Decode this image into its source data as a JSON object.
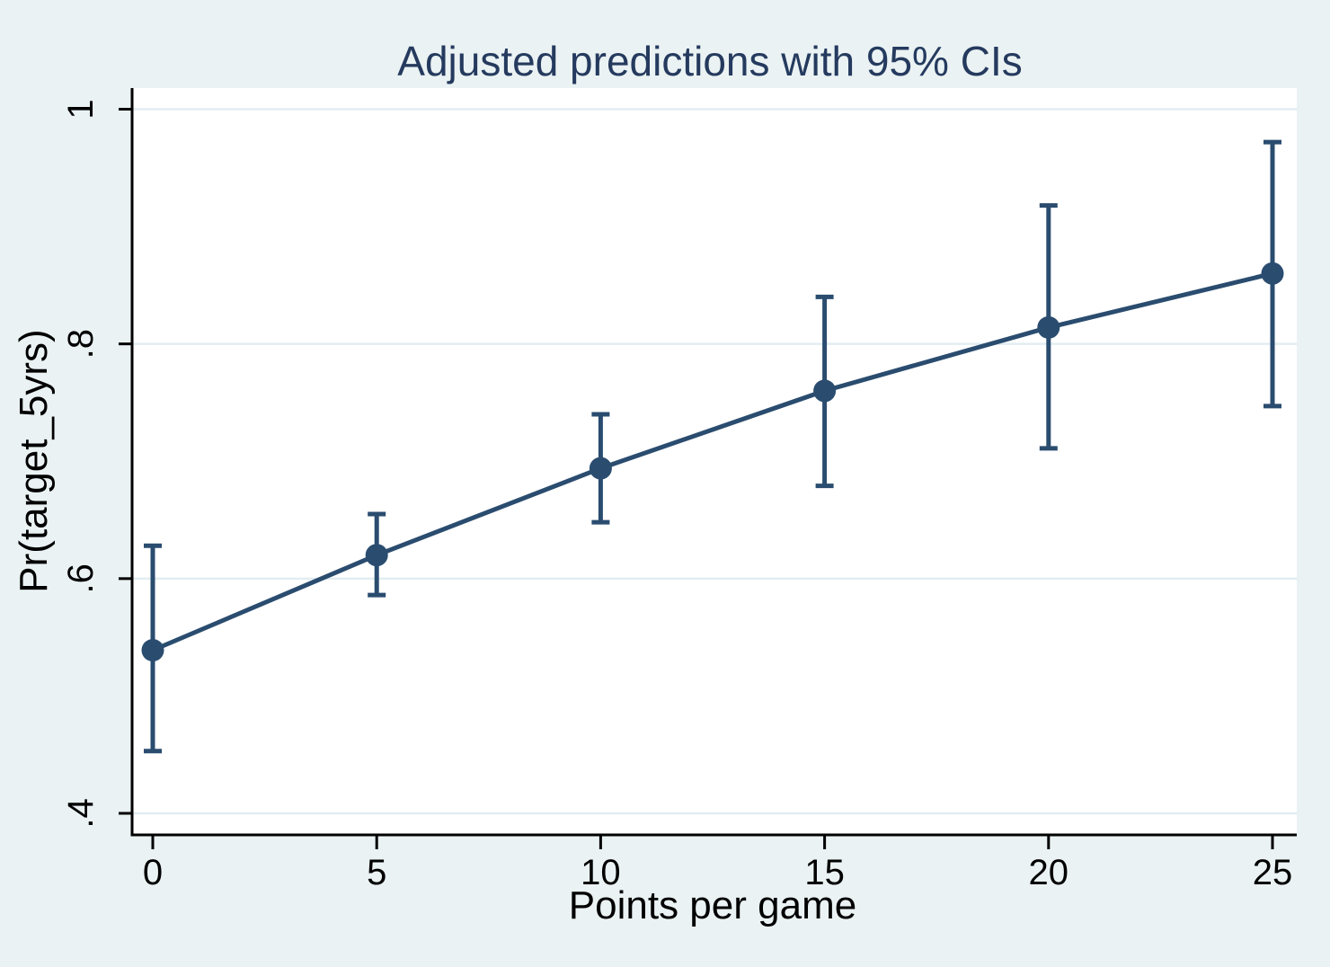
{
  "chart_data": {
    "type": "line",
    "title": "Adjusted predictions with 95% CIs",
    "xlabel": "Points per game",
    "ylabel": "Pr(target_5yrs)",
    "x": [
      0,
      5,
      10,
      15,
      20,
      25
    ],
    "series": [
      {
        "name": "Adjusted prediction",
        "values": [
          0.539,
          0.62,
          0.694,
          0.76,
          0.814,
          0.86
        ]
      }
    ],
    "ci_low": [
      0.453,
      0.586,
      0.648,
      0.679,
      0.711,
      0.747
    ],
    "ci_high": [
      0.628,
      0.655,
      0.74,
      0.84,
      0.918,
      0.972
    ],
    "xticks": [
      0,
      5,
      10,
      15,
      20,
      25
    ],
    "xtick_labels": [
      "0",
      "5",
      "10",
      "15",
      "20",
      "25"
    ],
    "yticks": [
      0.4,
      0.6,
      0.8,
      1
    ],
    "ytick_labels": [
      ".4",
      ".6",
      ".8",
      "1"
    ],
    "xlim": [
      0,
      25
    ],
    "ylim": [
      0.38,
      1.02
    ],
    "grid": "horizontal",
    "legend": "none",
    "marker": "filled-circle",
    "error_bars": "capped",
    "colors": {
      "line": "#2a4c6f",
      "marker": "#2a4c6f",
      "error_bar": "#2a4c6f",
      "title": "#253a5e",
      "background": "#eaf2f3",
      "plot_background": "#ffffff",
      "grid": "#e3edf2",
      "axis": "#000000",
      "tick_text": "#000000"
    }
  }
}
